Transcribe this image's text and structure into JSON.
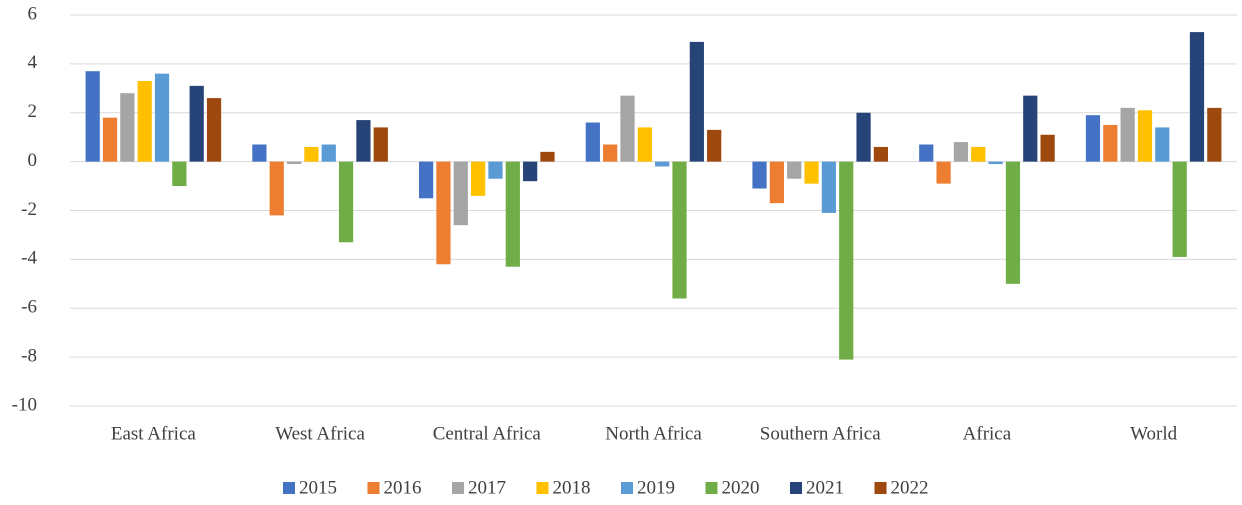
{
  "chart_data": {
    "type": "bar",
    "categories": [
      "East Africa",
      "West Africa",
      "Central Africa",
      "North Africa",
      "Southern Africa",
      "Africa",
      "World"
    ],
    "series": [
      {
        "name": "2015",
        "color": "#4472c4",
        "values": [
          3.7,
          0.7,
          -1.5,
          1.6,
          -1.1,
          0.7,
          1.9
        ]
      },
      {
        "name": "2016",
        "color": "#ed7d31",
        "values": [
          1.8,
          -2.2,
          -4.2,
          0.7,
          -1.7,
          -0.9,
          1.5
        ]
      },
      {
        "name": "2017",
        "color": "#a5a5a5",
        "values": [
          2.8,
          -0.1,
          -2.6,
          2.7,
          -0.7,
          0.8,
          2.2
        ]
      },
      {
        "name": "2018",
        "color": "#ffc000",
        "values": [
          3.3,
          0.6,
          -1.4,
          1.4,
          -0.9,
          0.6,
          2.1
        ]
      },
      {
        "name": "2019",
        "color": "#5b9bd5",
        "values": [
          3.6,
          0.7,
          -0.7,
          -0.2,
          -2.1,
          -0.1,
          1.4
        ]
      },
      {
        "name": "2020",
        "color": "#70ad47",
        "values": [
          -1.0,
          -3.3,
          -4.3,
          -5.6,
          -8.1,
          -5.0,
          -3.9
        ]
      },
      {
        "name": "2021",
        "color": "#264478",
        "values": [
          3.1,
          1.7,
          -0.8,
          4.9,
          2.0,
          2.7,
          5.3
        ]
      },
      {
        "name": "2022",
        "color": "#9e480e",
        "values": [
          2.6,
          1.4,
          0.4,
          1.3,
          0.6,
          1.1,
          2.2
        ]
      }
    ],
    "ylim": [
      -10,
      6
    ],
    "yticks": [
      -10,
      -8,
      -6,
      -4,
      -2,
      0,
      2,
      4,
      6
    ],
    "grid": true,
    "legend": "bottom"
  }
}
